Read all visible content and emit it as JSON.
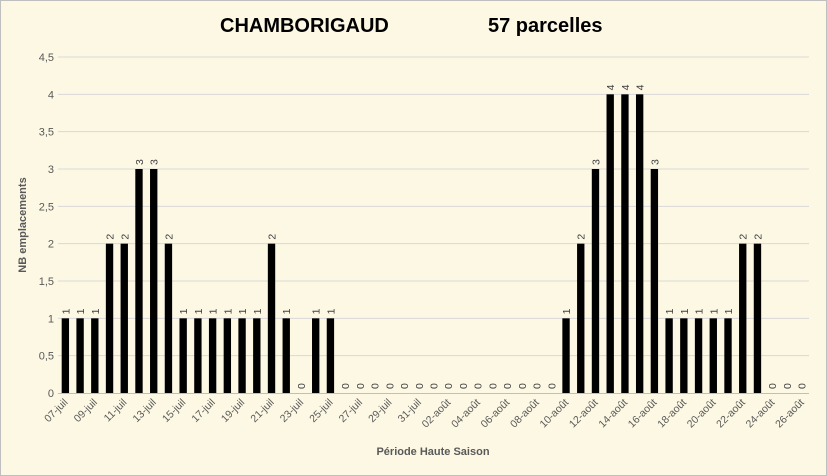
{
  "title_main": "CHAMBORIGAUD",
  "title_count": "57 parcelles",
  "chart_data": {
    "type": "bar",
    "title": "CHAMBORIGAUD 57 parcelles",
    "xlabel": "Période Haute Saison",
    "ylabel": "NB emplacements",
    "ylim": [
      0,
      4.5
    ],
    "yticks": [
      "0",
      "0,5",
      "1",
      "1,5",
      "2",
      "2,5",
      "3",
      "3,5",
      "4",
      "4,5"
    ],
    "grid": true,
    "legend": "none",
    "bar_color": "#000000",
    "categories": [
      "07-juil",
      "08-juil",
      "09-juil",
      "10-juil",
      "11-juil",
      "12-juil",
      "13-juil",
      "14-juil",
      "15-juil",
      "16-juil",
      "17-juil",
      "18-juil",
      "19-juil",
      "20-juil",
      "21-juil",
      "22-juil",
      "23-juil",
      "24-juil",
      "25-juil",
      "26-juil",
      "27-juil",
      "28-juil",
      "29-juil",
      "30-juil",
      "31-juil",
      "01-août",
      "02-août",
      "03-août",
      "04-août",
      "05-août",
      "06-août",
      "07-août",
      "08-août",
      "09-août",
      "10-août",
      "11-août",
      "12-août",
      "13-août",
      "14-août",
      "15-août",
      "16-août",
      "17-août",
      "18-août",
      "19-août",
      "20-août",
      "21-août",
      "22-août",
      "23-août",
      "24-août",
      "25-août",
      "26-août"
    ],
    "tick_labels": [
      "07-juil",
      "09-juil",
      "11-juil",
      "13-juil",
      "15-juil",
      "17-juil",
      "19-juil",
      "21-juil",
      "23-juil",
      "25-juil",
      "27-juil",
      "29-juil",
      "31-juil",
      "02-août",
      "04-août",
      "06-août",
      "08-août",
      "10-août",
      "12-août",
      "14-août",
      "16-août",
      "18-août",
      "20-août",
      "22-août",
      "24-août",
      "26-août"
    ],
    "values": [
      1,
      1,
      1,
      2,
      2,
      3,
      3,
      2,
      1,
      1,
      1,
      1,
      1,
      1,
      2,
      1,
      0,
      1,
      1,
      0,
      0,
      0,
      0,
      0,
      0,
      0,
      0,
      0,
      0,
      0,
      0,
      0,
      0,
      0,
      1,
      2,
      3,
      4,
      4,
      4,
      3,
      1,
      1,
      1,
      1,
      1,
      2,
      2,
      0,
      0,
      0
    ]
  }
}
